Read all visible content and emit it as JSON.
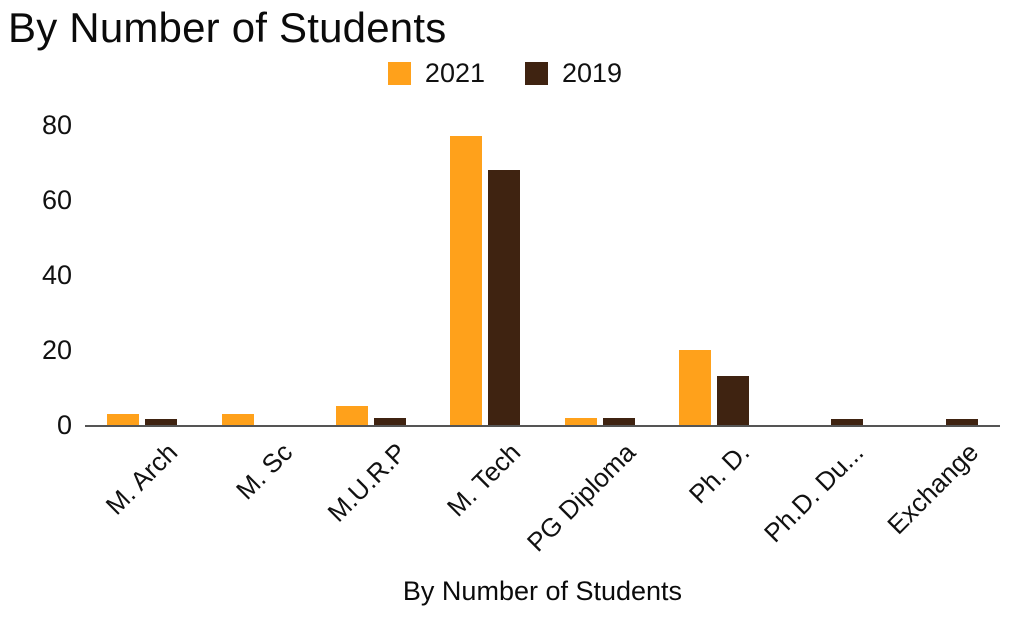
{
  "chart_data": {
    "type": "bar",
    "title": "By Number of Students",
    "xlabel": "By Number of Students",
    "ylabel": "",
    "categories": [
      "M. Arch",
      "M. Sc",
      "M.U.R.P",
      "M. Tech",
      "PG Diploma",
      "Ph. D.",
      "Ph.D. Du...",
      "Exchange"
    ],
    "series": [
      {
        "name": "2021",
        "color": "#FFA11B",
        "values": [
          3,
          3,
          5,
          77,
          2,
          20,
          0,
          0
        ]
      },
      {
        "name": "2019",
        "color": "#3F2311",
        "values": [
          1.5,
          0,
          2,
          68,
          2,
          13,
          1.5,
          1.5
        ]
      }
    ],
    "ylim": [
      0,
      80
    ],
    "yticks": [
      0,
      20,
      40,
      60,
      80
    ],
    "legend_position": "top",
    "grid": false,
    "axis_color": "#555555",
    "text_color": "#111111"
  }
}
